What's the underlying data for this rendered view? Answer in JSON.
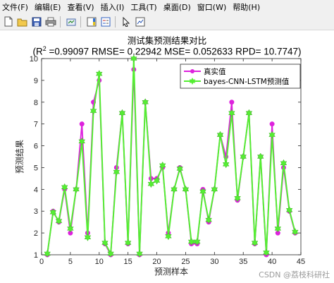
{
  "menu": [
    "文件(F)",
    "编辑(E)",
    "查看(V)",
    "插入(I)",
    "工具(T)",
    "桌面(D)",
    "窗口(W)",
    "帮助(H)"
  ],
  "toolbar_icons": [
    "new-file-icon",
    "open-folder-icon",
    "save-icon",
    "print-icon",
    "sep",
    "link-icon",
    "sep",
    "insert-colorbar-icon",
    "insert-legend-icon",
    "sep",
    "pointer-icon",
    "edit-plot-icon"
  ],
  "figure": {
    "title": "测试集预测结果对比",
    "metrics_prefix": "(R",
    "metrics_sup": "2",
    "metrics_rest": " =0.99097 RMSE= 0.22942 MSE= 0.052633 RPD= 10.7747)"
  },
  "chart_data": {
    "type": "line",
    "xlabel": "预测样本",
    "ylabel": "预测结果",
    "xlim": [
      0,
      45
    ],
    "ylim": [
      1,
      10
    ],
    "xticks": [
      0,
      5,
      10,
      15,
      20,
      25,
      30,
      35,
      40,
      45
    ],
    "yticks": [
      1,
      2,
      3,
      4,
      5,
      6,
      7,
      8,
      9,
      10
    ],
    "grid": false,
    "legend_position": "top-right",
    "x": [
      1,
      2,
      3,
      4,
      5,
      6,
      7,
      8,
      9,
      10,
      11,
      12,
      13,
      14,
      15,
      16,
      17,
      18,
      19,
      20,
      21,
      22,
      23,
      24,
      25,
      26,
      27,
      28,
      29,
      30,
      31,
      32,
      33,
      34,
      35,
      36,
      37,
      38,
      39,
      40,
      41,
      42,
      43,
      44
    ],
    "series": [
      {
        "name": "真实值",
        "color": "#dd22dd",
        "marker": "circle",
        "values": [
          1,
          3,
          2.5,
          4,
          2,
          4,
          7,
          2,
          8,
          9,
          1.5,
          1,
          5,
          7.5,
          1.5,
          9.5,
          1,
          8,
          4.5,
          4.5,
          5,
          2,
          4,
          5,
          4,
          1.5,
          1.5,
          4,
          2.5,
          4,
          6.5,
          5.5,
          8,
          3.5,
          5.5,
          7.5,
          1.5,
          5.5,
          1,
          7,
          2,
          5,
          3,
          2
        ]
      },
      {
        "name": "bayes-CNN-LSTM预测值",
        "color": "#55ee33",
        "marker": "hexagram",
        "values": [
          1.05,
          2.95,
          2.55,
          4.1,
          2.2,
          4.0,
          6.2,
          1.8,
          7.6,
          9.3,
          1.55,
          1.05,
          4.8,
          7.5,
          1.55,
          10.0,
          1.05,
          8.0,
          4.25,
          4.4,
          5.1,
          1.85,
          4.0,
          4.95,
          4.0,
          1.6,
          1.6,
          3.9,
          2.6,
          4.0,
          6.5,
          5.15,
          7.5,
          3.6,
          5.5,
          7.5,
          1.55,
          5.5,
          1.1,
          6.5,
          2.2,
          5.2,
          3.05,
          2.05
        ]
      }
    ]
  }
}
